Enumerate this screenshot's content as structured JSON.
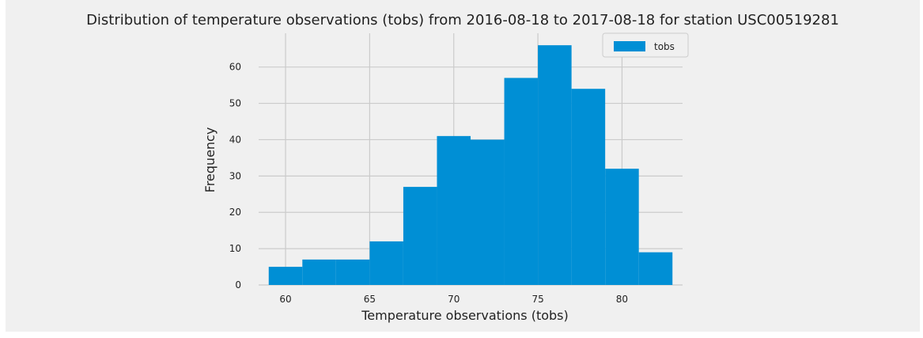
{
  "chart_data": {
    "type": "bar",
    "title": "Distribution of temperature observations (tobs) from 2016-08-18 to 2017-08-18 for station USC00519281",
    "xlabel": "Temperature observations (tobs)",
    "ylabel": "Frequency",
    "bin_edges": [
      59,
      61,
      63,
      65,
      67,
      69,
      71,
      73,
      75,
      77,
      79,
      81,
      83
    ],
    "series": [
      {
        "name": "tobs",
        "values": [
          5,
          7,
          7,
          12,
          27,
          41,
          40,
          57,
          66,
          54,
          32,
          9
        ]
      }
    ],
    "xlim": [
      58.4,
      83.6
    ],
    "ylim": [
      0,
      69.3
    ],
    "xticks": [
      60,
      65,
      70,
      75,
      80
    ],
    "yticks": [
      0,
      10,
      20,
      30,
      40,
      50,
      60
    ],
    "grid": true,
    "legend_position": "top-right",
    "colors": {
      "bar": "#008fd5",
      "background": "#f0f0f0",
      "grid": "#cbcbcb"
    }
  }
}
